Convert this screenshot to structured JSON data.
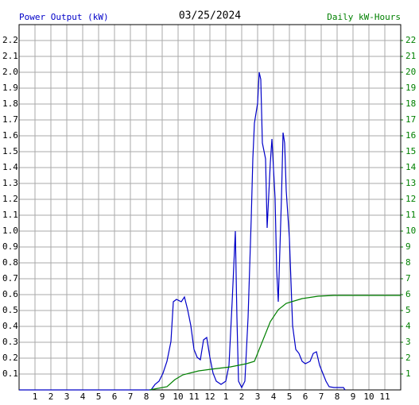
{
  "chart_data": {
    "type": "line",
    "title": "03/25/2024",
    "y_label": "Power Output (kW)",
    "y2_label": "Daily kW-Hours",
    "xlim": [
      0,
      24
    ],
    "xticks": [
      1,
      2,
      3,
      4,
      5,
      6,
      7,
      8,
      9,
      10,
      11,
      12,
      {
        "value": 13,
        "label": "1"
      },
      {
        "value": 14,
        "label": "2"
      },
      {
        "value": 15,
        "label": "3"
      },
      {
        "value": 16,
        "label": "4"
      },
      {
        "value": 17,
        "label": "5"
      },
      {
        "value": 18,
        "label": "6"
      },
      {
        "value": 19,
        "label": "7"
      },
      {
        "value": 20,
        "label": "8"
      },
      {
        "value": 21,
        "label": "9"
      },
      {
        "value": 22,
        "label": "10"
      },
      {
        "value": 23,
        "label": "11"
      }
    ],
    "ylim": [
      0,
      2.3
    ],
    "yticks": [
      0.1,
      0.2,
      0.3,
      0.4,
      0.5,
      0.6,
      0.7,
      0.8,
      0.9,
      {
        "value": 1.0,
        "label": "1.0"
      },
      1.1,
      1.2,
      1.3,
      1.4,
      1.5,
      1.6,
      1.7,
      1.8,
      1.9,
      {
        "value": 2.0,
        "label": "2.0"
      },
      2.1,
      2.2
    ],
    "y2lim": [
      0,
      23
    ],
    "y2ticks": [
      1,
      2,
      3,
      4,
      5,
      6,
      7,
      8,
      9,
      10,
      11,
      12,
      13,
      14,
      15,
      16,
      17,
      18,
      19,
      20,
      21,
      22
    ],
    "grid": true,
    "series": [
      {
        "name": "Power Output (kW)",
        "color": "#0000c8",
        "x": [
          0,
          8.3,
          8.55,
          8.8,
          9.05,
          9.3,
          9.55,
          9.7,
          9.9,
          10.2,
          10.4,
          10.6,
          10.8,
          11.0,
          11.2,
          11.4,
          11.6,
          11.8,
          12.0,
          12.2,
          12.4,
          12.7,
          13.0,
          13.2,
          13.4,
          13.6,
          13.7,
          13.8,
          14.0,
          14.2,
          14.4,
          14.6,
          14.7,
          14.8,
          15.0,
          15.1,
          15.2,
          15.3,
          15.5,
          15.6,
          15.8,
          15.9,
          16.1,
          16.2,
          16.3,
          16.5,
          16.6,
          16.7,
          16.8,
          17.0,
          17.2,
          17.4,
          17.6,
          17.8,
          18.0,
          18.3,
          18.5,
          18.7,
          18.9,
          19.1,
          19.3,
          19.5,
          19.8,
          20.4,
          20.5
        ],
        "values": [
          0,
          0,
          0.035,
          0.055,
          0.105,
          0.18,
          0.305,
          0.555,
          0.57,
          0.555,
          0.585,
          0.505,
          0.405,
          0.255,
          0.205,
          0.19,
          0.315,
          0.33,
          0.205,
          0.105,
          0.055,
          0.035,
          0.055,
          0.155,
          0.555,
          1.0,
          0.455,
          0.055,
          0.015,
          0.055,
          0.455,
          1.08,
          1.455,
          1.68,
          1.805,
          2.0,
          1.955,
          1.555,
          1.455,
          1.02,
          1.43,
          1.58,
          1.205,
          0.755,
          0.555,
          1.205,
          1.62,
          1.555,
          1.255,
          0.955,
          0.405,
          0.255,
          0.23,
          0.18,
          0.165,
          0.18,
          0.23,
          0.24,
          0.155,
          0.105,
          0.055,
          0.02,
          0.015,
          0.015,
          0
        ]
      },
      {
        "name": "Daily kW-Hours",
        "color": "#008000",
        "axis": "y2",
        "x": [
          8.2,
          9.3,
          9.8,
          10.3,
          11.3,
          12.05,
          13.3,
          14.3,
          14.8,
          15.3,
          15.8,
          16.3,
          16.8,
          17.3,
          17.8,
          18.8,
          19.8,
          24
        ],
        "values": [
          0,
          0.2,
          0.65,
          0.95,
          1.2,
          1.3,
          1.45,
          1.65,
          1.8,
          3.05,
          4.3,
          5.05,
          5.45,
          5.6,
          5.75,
          5.9,
          5.95,
          5.95
        ]
      }
    ]
  }
}
